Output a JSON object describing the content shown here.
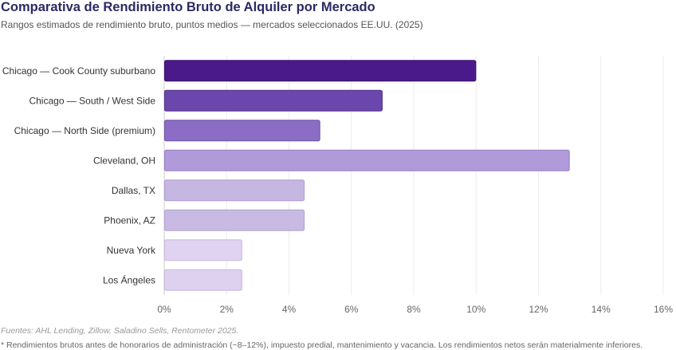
{
  "header": {
    "title": "Comparativa de Rendimiento Bruto de Alquiler por Mercado",
    "subtitle": "Rangos estimados de rendimiento bruto, puntos medios — mercados seleccionados EE.UU. (2025)"
  },
  "footer": {
    "source": "Fuentes: AHL Lending, Zillow, Saladino Sells, Rentometer 2025.",
    "note": "* Rendimientos brutos antes de honorarios de administración (~8–12%), impuesto predial, mantenimiento y vacancia. Los rendimientos netos serán materialmente inferiores."
  },
  "chart_data": {
    "type": "bar",
    "orientation": "horizontal",
    "title": "Comparativa de Rendimiento Bruto de Alquiler por Mercado",
    "subtitle": "Rangos estimados de rendimiento bruto, puntos medios — mercados seleccionados EE.UU. (2025)",
    "xlabel": "",
    "ylabel": "",
    "xlim": [
      0,
      16
    ],
    "x_ticks": [
      0,
      2,
      4,
      6,
      8,
      10,
      12,
      14,
      16
    ],
    "x_tick_labels": [
      "0%",
      "2%",
      "4%",
      "6%",
      "8%",
      "10%",
      "12%",
      "14%",
      "16%"
    ],
    "grid": "vertical",
    "legend": "none",
    "categories": [
      "Chicago — Cook County suburbano",
      "Chicago — South / West Side",
      "Chicago — North Side (premium)",
      "Cleveland, OH",
      "Dallas, TX",
      "Phoenix, AZ",
      "Nueva York",
      "Los Ángeles"
    ],
    "values": [
      10,
      7,
      5,
      13,
      4.5,
      4.5,
      2.5,
      2.5
    ],
    "colors": [
      "#4b1a8a",
      "#6b47ad",
      "#8b6dc6",
      "#b09ad9",
      "#c6b6e2",
      "#c9bae3",
      "#dfd3f1",
      "#ddd1ef"
    ],
    "borders": [
      "#3c1570",
      "#553890",
      "#7357aa",
      "#9a83c6",
      "#b2a0d2",
      "#b5a4d4",
      "#cbbde3",
      "#c9bbe1"
    ]
  }
}
